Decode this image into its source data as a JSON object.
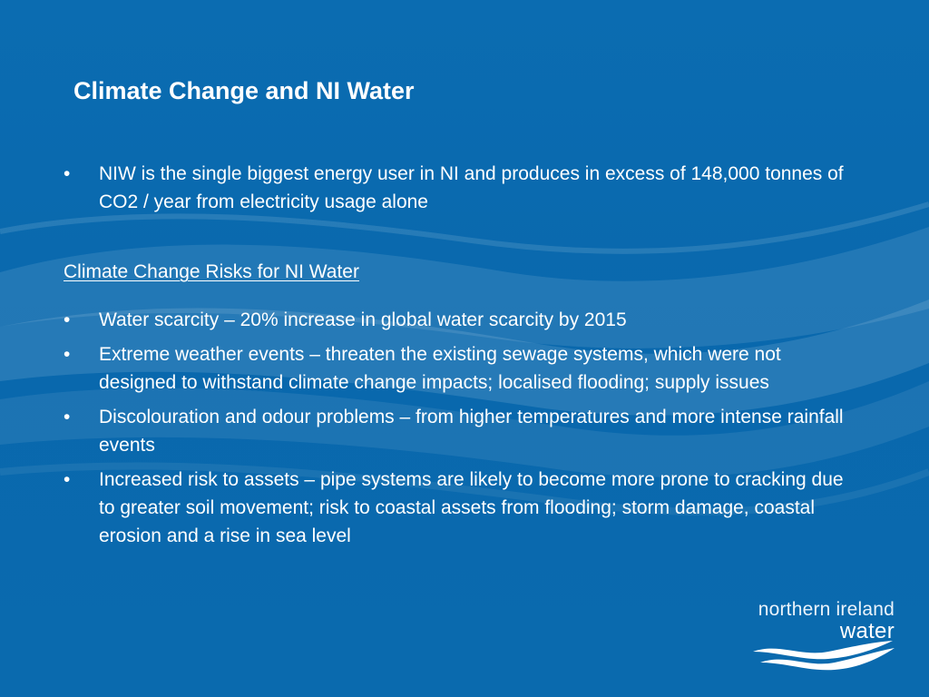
{
  "slide": {
    "title": "Climate Change and NI Water",
    "intro_bullets": [
      "NIW is the single biggest energy user in NI and produces in excess of 148,000 tonnes of CO2 / year from electricity usage alone"
    ],
    "subheading": "Climate Change Risks for NI Water",
    "risk_bullets": [
      "Water scarcity – 20% increase in global water scarcity by 2015",
      "Extreme weather events – threaten the existing sewage systems, which were not designed to withstand climate change impacts; localised flooding; supply issues",
      "Discolouration and odour problems – from higher temperatures and more intense rainfall events",
      "Increased risk to assets – pipe systems are likely to become more prone to cracking due to greater soil movement; risk to coastal assets from flooding; storm damage, coastal erosion and a rise in sea level"
    ],
    "bullet_glyph": "•"
  },
  "logo": {
    "line1": "northern ireland",
    "line2": "water"
  },
  "colors": {
    "background": "#0a6bb0",
    "wave_light": "#3f8cc7",
    "text": "#ffffff"
  }
}
